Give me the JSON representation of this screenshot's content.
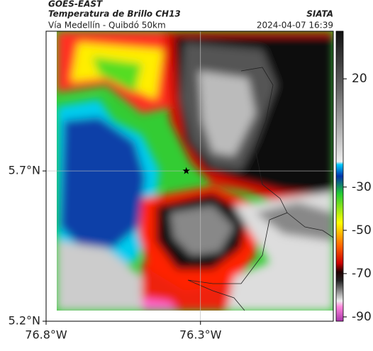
{
  "header": {
    "org": "GOES-EAST",
    "title": "Temperatura de Brillo CH13",
    "subtitle": "Vía Medellín - Quibdó 50km",
    "source": "SIATA",
    "timestamp": "2024-04-07 16:39"
  },
  "map": {
    "xlim": [
      -76.8,
      -75.87
    ],
    "ylim": [
      5.2,
      6.165
    ],
    "xticks": [
      {
        "value": -76.8,
        "label": "76.8°W"
      },
      {
        "value": -76.3,
        "label": "76.3°W"
      }
    ],
    "yticks": [
      {
        "value": 5.2,
        "label": "5.2°N"
      },
      {
        "value": 5.7,
        "label": "5.7°N"
      }
    ],
    "grid": true,
    "marker": {
      "lon": -76.346,
      "lat": 5.7
    }
  },
  "colorbar": {
    "lim": [
      -92,
      42
    ],
    "ticks": [
      20,
      -30,
      -50,
      -70,
      -90
    ]
  }
}
